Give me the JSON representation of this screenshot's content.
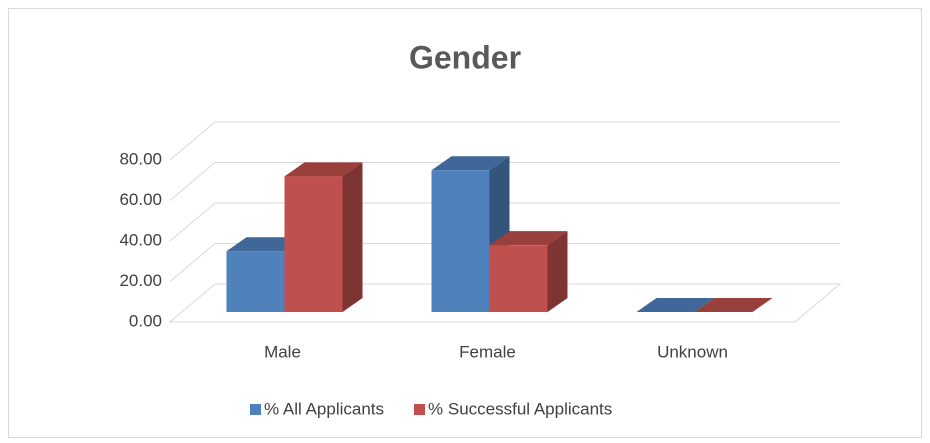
{
  "chart_data": {
    "type": "bar3d",
    "title": "Gender",
    "categories": [
      "Male",
      "Female",
      "Unknown"
    ],
    "series": [
      {
        "name": "% All Applicants",
        "color": "#4f81bd",
        "values": [
          30,
          70,
          0
        ]
      },
      {
        "name": "% Successful Applicants",
        "color": "#c0504d",
        "values": [
          67,
          33,
          0
        ]
      }
    ],
    "ylim": [
      0,
      80
    ],
    "yticks": [
      {
        "value": 0,
        "label": "0.00"
      },
      {
        "value": 20,
        "label": "20.00"
      },
      {
        "value": 40,
        "label": "40.00"
      },
      {
        "value": 60,
        "label": "60.00"
      },
      {
        "value": 80,
        "label": "80.00"
      }
    ],
    "grid": true,
    "legend": "bottom"
  }
}
